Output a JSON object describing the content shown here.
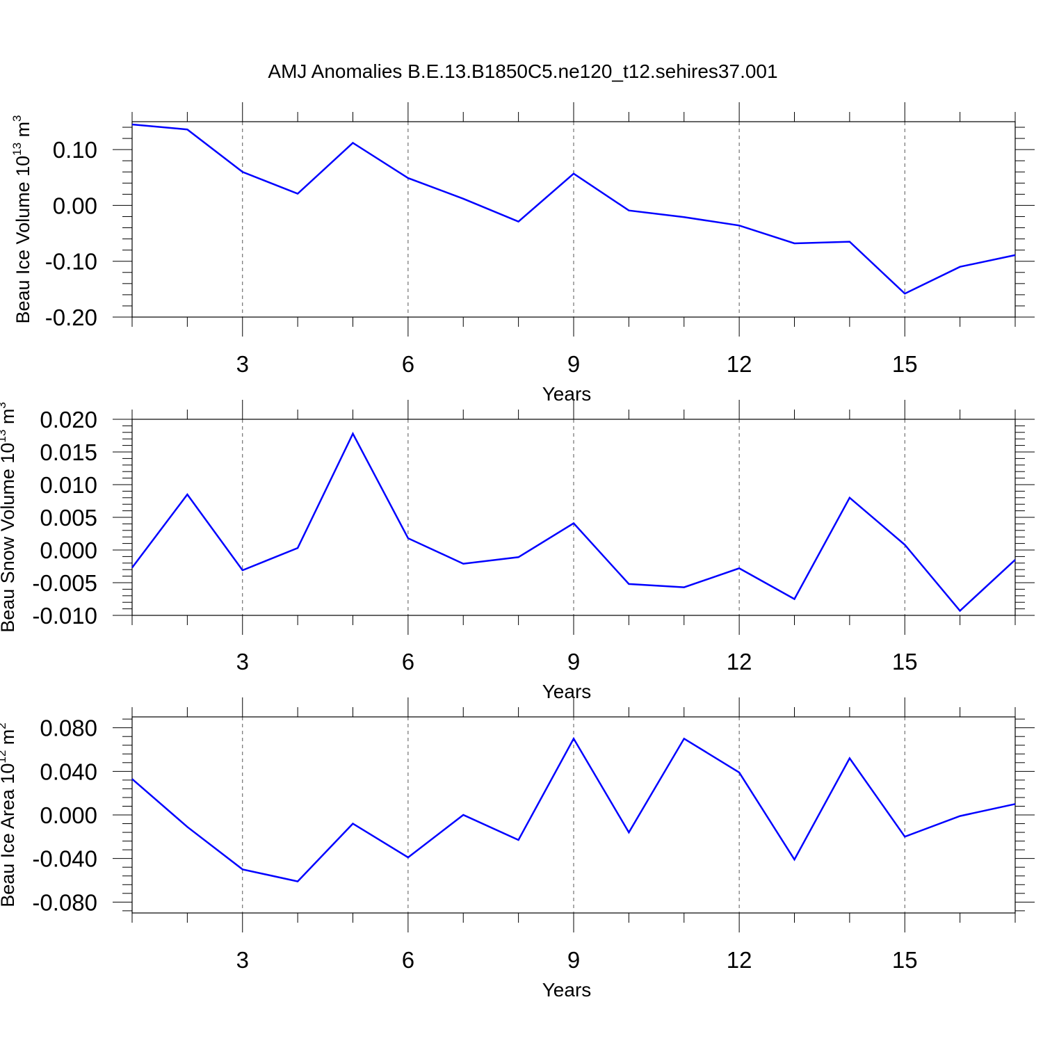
{
  "title": "AMJ Anomalies B.E.13.B1850C5.ne120_t12.sehires37.001",
  "colors": {
    "line": "#0000ff",
    "axis": "#000000",
    "grid": "#555555"
  },
  "chart_data": [
    {
      "type": "line",
      "xlabel": "Years",
      "ylabel": {
        "text": "Beau Ice Volume 10",
        "exp": "13",
        "unit": " m",
        "unit_exp": "3"
      },
      "xlim": [
        1,
        17
      ],
      "ylim": [
        -0.2,
        0.15
      ],
      "xticks": [
        3,
        6,
        9,
        12,
        15
      ],
      "xtick_labels": [
        "3",
        "6",
        "9",
        "12",
        "15"
      ],
      "yticks": [
        -0.2,
        -0.1,
        0.0,
        0.1
      ],
      "ytick_labels": [
        "-0.20",
        "-0.10",
        "0.00",
        "0.10"
      ],
      "grid": "vertical dashed at major x ticks",
      "x": [
        1,
        2,
        3,
        4,
        5,
        6,
        7,
        8,
        9,
        10,
        11,
        12,
        13,
        14,
        15,
        16,
        17
      ],
      "series": [
        {
          "values": [
            0.145,
            0.136,
            0.06,
            0.021,
            0.112,
            0.049,
            0.012,
            -0.029,
            0.057,
            -0.009,
            -0.021,
            -0.036,
            -0.068,
            -0.065,
            -0.158,
            -0.11,
            -0.089
          ]
        }
      ]
    },
    {
      "type": "line",
      "xlabel": "Years",
      "ylabel": {
        "text": "Beau Snow Volume 10",
        "exp": "13",
        "unit": " m",
        "unit_exp": "3"
      },
      "xlim": [
        1,
        17
      ],
      "ylim": [
        -0.01,
        0.02
      ],
      "xticks": [
        3,
        6,
        9,
        12,
        15
      ],
      "xtick_labels": [
        "3",
        "6",
        "9",
        "12",
        "15"
      ],
      "yticks": [
        -0.01,
        -0.005,
        0.0,
        0.005,
        0.01,
        0.015,
        0.02
      ],
      "ytick_labels": [
        "-0.010",
        "-0.005",
        "0.000",
        "0.005",
        "0.010",
        "0.015",
        "0.020"
      ],
      "grid": "vertical dashed at major x ticks",
      "x": [
        1,
        2,
        3,
        4,
        5,
        6,
        7,
        8,
        9,
        10,
        11,
        12,
        13,
        14,
        15,
        16,
        17
      ],
      "series": [
        {
          "values": [
            -0.0027,
            0.0085,
            -0.0031,
            0.0003,
            0.0178,
            0.0018,
            -0.0021,
            -0.0011,
            0.0041,
            -0.0052,
            -0.0057,
            -0.0028,
            -0.0075,
            0.008,
            0.0008,
            -0.0093,
            -0.0015
          ]
        }
      ]
    },
    {
      "type": "line",
      "xlabel": "Years",
      "ylabel": {
        "text": "Beau Ice Area 10",
        "exp": "12",
        "unit": " m",
        "unit_exp": "2"
      },
      "xlim": [
        1,
        17
      ],
      "ylim": [
        -0.09,
        0.09
      ],
      "xticks": [
        3,
        6,
        9,
        12,
        15
      ],
      "xtick_labels": [
        "3",
        "6",
        "9",
        "12",
        "15"
      ],
      "yticks": [
        -0.08,
        -0.04,
        0.0,
        0.04,
        0.08
      ],
      "ytick_labels": [
        "-0.080",
        "-0.040",
        "0.000",
        "0.040",
        "0.080"
      ],
      "grid": "vertical dashed at major x ticks",
      "x": [
        1,
        2,
        3,
        4,
        5,
        6,
        7,
        8,
        9,
        10,
        11,
        12,
        13,
        14,
        15,
        16,
        17
      ],
      "series": [
        {
          "values": [
            0.033,
            -0.011,
            -0.05,
            -0.061,
            -0.008,
            -0.039,
            0.0,
            -0.023,
            0.07,
            -0.016,
            0.07,
            0.039,
            -0.041,
            0.052,
            -0.02,
            -0.001,
            0.01
          ]
        }
      ]
    }
  ]
}
